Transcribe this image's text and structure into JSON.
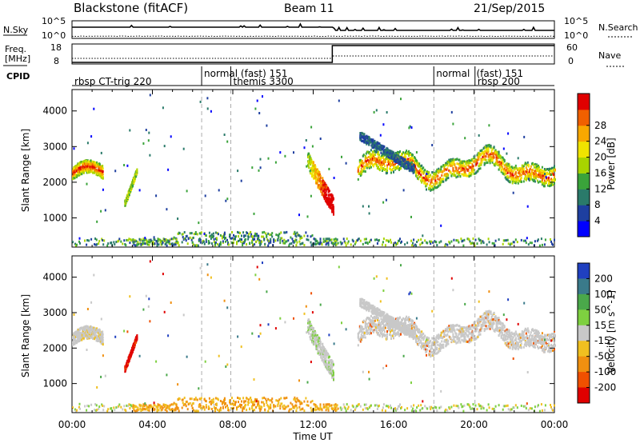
{
  "header": {
    "station": "Blackstone (fitACF)",
    "beam": "Beam 11",
    "date": "21/Sep/2015"
  },
  "side_labels": {
    "nsky": "N.Sky",
    "nsearch": "N.Search",
    "freq_line1": "Freq.",
    "freq_line2": "[MHz]",
    "nave": "Nave",
    "cpid": "CPID"
  },
  "mini_axes": {
    "nsky_ticks": [
      "10^5",
      "10^0"
    ],
    "nsearch_ticks": [
      "10^5",
      "10^0"
    ],
    "freq_ticks": [
      "18",
      "8"
    ],
    "nave_ticks": [
      "60",
      "0"
    ]
  },
  "cpid_segments": [
    {
      "label": "rbsp CT-trig 220",
      "start_h": 0.0,
      "row": 1
    },
    {
      "label": "normal (fast) 151",
      "start_h": 6.45,
      "row": 0
    },
    {
      "label": "themis 3300",
      "start_h": 7.9,
      "row": 1
    },
    {
      "label": "normal",
      "start_h": 18.0,
      "row": 0
    },
    {
      "label": "(fast) 151",
      "start_h": 20.0,
      "row": 0
    },
    {
      "label": "rbsp 200",
      "start_h": 20.05,
      "row": 1
    }
  ],
  "chart_data": [
    {
      "type": "heatmap",
      "name": "Power",
      "ylabel": "Slant Range [km]",
      "xlabel": "Time UT",
      "x_range_h": [
        0,
        24
      ],
      "xticks": [
        "00:00",
        "04:00",
        "08:00",
        "12:00",
        "16:00",
        "20:00",
        "00:00"
      ],
      "y_range_km": [
        180,
        4600
      ],
      "yticks": [
        1000,
        2000,
        3000,
        4000
      ],
      "colorbar_label": "Power [dB]",
      "colorbar_ticks": [
        "4",
        "8",
        "12",
        "16",
        "20",
        "24",
        "28"
      ],
      "colorbar_colors": [
        "#0000ff",
        "#1e3fa0",
        "#2a7a6a",
        "#3aa33a",
        "#a8d400",
        "#f0e400",
        "#f8a800",
        "#f06000",
        "#e00000"
      ]
    },
    {
      "type": "heatmap",
      "name": "Velocity",
      "ylabel": "Slant Range [km]",
      "xlabel": "Time UT",
      "x_range_h": [
        0,
        24
      ],
      "xticks": [
        "00:00",
        "04:00",
        "08:00",
        "12:00",
        "16:00",
        "20:00",
        "00:00"
      ],
      "y_range_km": [
        180,
        4600
      ],
      "yticks": [
        1000,
        2000,
        3000,
        4000
      ],
      "colorbar_label": "Velocity [m s^-1]",
      "colorbar_ticks": [
        "200",
        "100",
        "50",
        "15",
        "-15",
        "-50",
        "-100",
        "-200"
      ],
      "colorbar_colors": [
        "#2040c0",
        "#3a7a8a",
        "#4aa84a",
        "#7ed040",
        "#c8c8c8",
        "#f0c020",
        "#f09010",
        "#f05000",
        "#e00000"
      ]
    }
  ]
}
